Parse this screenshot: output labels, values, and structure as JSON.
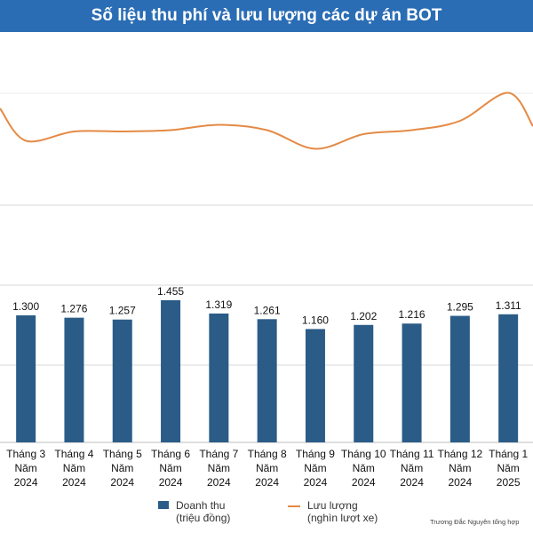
{
  "title": "Số liệu thu phí và lưu lượng các dự án BOT",
  "colors": {
    "header_bg": "#2a6db5",
    "bar": "#2b5c87",
    "line": "#e48a45",
    "grid": "#d9d9d9"
  },
  "legend": {
    "bar_label_1": "Doanh thu",
    "bar_label_2": "(triệu đồng)",
    "line_label_1": "Lưu lượng",
    "line_label_2": "(nghìn lượt xe)"
  },
  "credit": "Trương Đắc Nguyên tổng hợp",
  "chart_data": {
    "type": "bar",
    "categories": [
      [
        "Tháng 3",
        "Năm",
        "2024"
      ],
      [
        "Tháng 4",
        "Năm",
        "2024"
      ],
      [
        "Tháng 5",
        "Năm",
        "2024"
      ],
      [
        "Tháng 6",
        "Năm",
        "2024"
      ],
      [
        "Tháng 7",
        "Năm",
        "2024"
      ],
      [
        "Tháng 8",
        "Năm",
        "2024"
      ],
      [
        "Tháng 9",
        "Năm",
        "2024"
      ],
      [
        "Tháng 10",
        "Năm",
        "2024"
      ],
      [
        "Tháng 11",
        "Năm",
        "2024"
      ],
      [
        "Tháng 12",
        "Năm",
        "2024"
      ],
      [
        "Tháng 1",
        "Năm",
        "2025"
      ]
    ],
    "series": [
      {
        "name": "Doanh thu (triệu đồng)",
        "type": "bar",
        "values": [
          1300,
          1276,
          1257,
          1455,
          1319,
          1261,
          1160,
          1202,
          1216,
          1295,
          1311
        ],
        "labels": [
          "1.300",
          "1.276",
          "1.257",
          "1.455",
          "1.319",
          "1.261",
          "1.160",
          "1.202",
          "1.216",
          "1.295",
          "1.311"
        ]
      },
      {
        "name": "Lưu lượng (nghìn lượt xe)",
        "type": "line",
        "values": [
          1440,
          1475,
          1475,
          1480,
          1500,
          1480,
          1410,
          1465,
          1480,
          1515,
          1620
        ]
      }
    ],
    "ylim": [
      0,
      1600
    ],
    "grid": true,
    "legend_position": "bottom"
  }
}
